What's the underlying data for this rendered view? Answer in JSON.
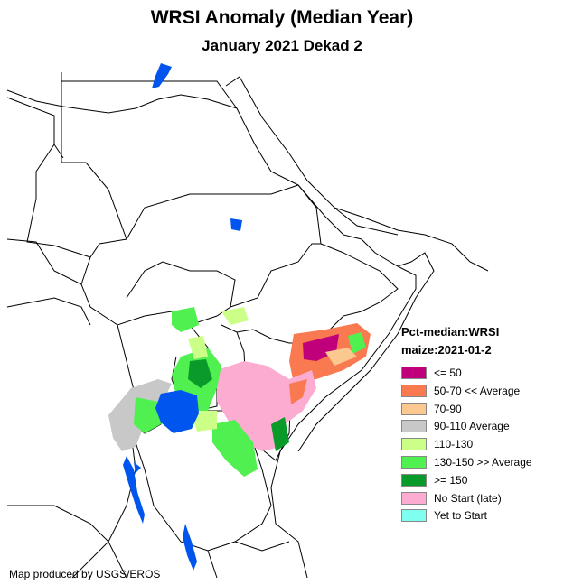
{
  "title": "WRSI Anomaly (Median Year)",
  "subtitle": "January 2021 Dekad 2",
  "legend": {
    "title_line1": "Pct-median:WRSI",
    "title_line2": "maize:2021-01-2",
    "items": [
      {
        "label": "<= 50",
        "color": "#c0007a"
      },
      {
        "label": "50-70 << Average",
        "color": "#f97a50"
      },
      {
        "label": "70-90",
        "color": "#fbc890"
      },
      {
        "label": "90-110 Average",
        "color": "#c8c8c8"
      },
      {
        "label": "110-130",
        "color": "#ccff88"
      },
      {
        "label": "130-150 >> Average",
        "color": "#4ff04f"
      },
      {
        "label": ">= 150",
        "color": "#0a9a2a"
      },
      {
        "label": "No Start (late)",
        "color": "#fcacd0"
      },
      {
        "label": "Yet to Start",
        "color": "#7ffff0"
      }
    ]
  },
  "credit": "Map produced by USGS/EROS",
  "colors": {
    "water": "#0055ee",
    "border": "#000000"
  }
}
